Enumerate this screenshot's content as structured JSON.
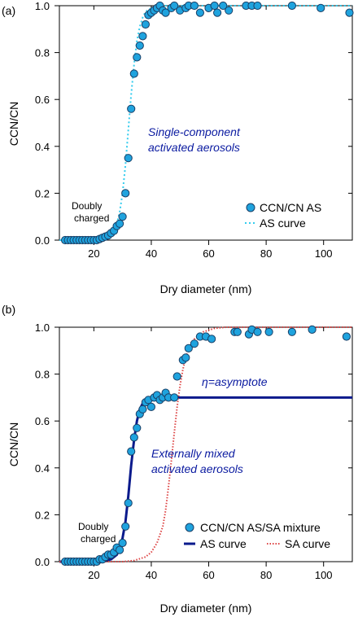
{
  "colors": {
    "marker_fill": "#1fa3de",
    "marker_stroke": "#1a3f66",
    "as_curve_a": "#33ccee",
    "as_curve_b": "#0a1a8c",
    "sa_curve": "#dd4444",
    "annotation": "#0a1aa0"
  },
  "chart_data": [
    {
      "panel_label": "(a)",
      "type": "scatter",
      "xlabel": "Dry diameter (nm)",
      "ylabel": "CCN/CN",
      "xlim": [
        8,
        110
      ],
      "ylim": [
        0,
        1.0
      ],
      "x_ticks": [
        20,
        40,
        60,
        80,
        100
      ],
      "y_ticks": [
        0.0,
        0.2,
        0.4,
        0.6,
        0.8,
        1.0
      ],
      "grid": false,
      "legend_placement": "bottom-right",
      "annotations": [
        "Single-component",
        "activated aerosols",
        "Doubly",
        "charged"
      ],
      "series": [
        {
          "name": "CCN/CN AS",
          "kind": "markers",
          "points": [
            [
              10,
              0
            ],
            [
              11,
              0
            ],
            [
              12,
              0
            ],
            [
              13,
              0
            ],
            [
              14,
              0
            ],
            [
              15,
              0
            ],
            [
              16,
              0
            ],
            [
              17,
              0
            ],
            [
              18,
              0
            ],
            [
              19,
              0
            ],
            [
              20,
              0
            ],
            [
              21,
              0
            ],
            [
              22,
              0.005
            ],
            [
              23,
              0.01
            ],
            [
              24,
              0.015
            ],
            [
              25,
              0.02
            ],
            [
              26,
              0.03
            ],
            [
              27,
              0.04
            ],
            [
              28,
              0.06
            ],
            [
              29,
              0.07
            ],
            [
              30,
              0.1
            ],
            [
              31,
              0.2
            ],
            [
              32,
              0.35
            ],
            [
              33,
              0.56
            ],
            [
              34,
              0.71
            ],
            [
              35,
              0.78
            ],
            [
              36,
              0.83
            ],
            [
              37,
              0.87
            ],
            [
              38,
              0.92
            ],
            [
              39,
              0.96
            ],
            [
              40,
              0.97
            ],
            [
              41,
              0.98
            ],
            [
              42,
              0.99
            ],
            [
              43,
              1.0
            ],
            [
              44,
              0.98
            ],
            [
              45,
              0.97
            ],
            [
              47,
              0.99
            ],
            [
              48,
              1.0
            ],
            [
              50,
              0.98
            ],
            [
              52,
              0.99
            ],
            [
              53,
              1.0
            ],
            [
              55,
              1.0
            ],
            [
              57,
              0.97
            ],
            [
              60,
              0.99
            ],
            [
              62,
              1.0
            ],
            [
              63,
              0.97
            ],
            [
              65,
              1.0
            ],
            [
              67,
              0.98
            ],
            [
              73,
              1.0
            ],
            [
              75,
              1.0
            ],
            [
              77,
              1.0
            ],
            [
              89,
              1.0
            ],
            [
              99,
              0.99
            ],
            [
              109,
              0.97
            ]
          ]
        },
        {
          "name": "AS curve",
          "kind": "dotted",
          "points": [
            [
              8,
              0
            ],
            [
              20,
              0
            ],
            [
              22,
              0.005
            ],
            [
              24,
              0.01
            ],
            [
              26,
              0.02
            ],
            [
              27,
              0.04
            ],
            [
              28,
              0.07
            ],
            [
              29,
              0.12
            ],
            [
              30,
              0.2
            ],
            [
              31,
              0.32
            ],
            [
              32,
              0.47
            ],
            [
              33,
              0.62
            ],
            [
              34,
              0.75
            ],
            [
              35,
              0.85
            ],
            [
              36,
              0.91
            ],
            [
              37,
              0.95
            ],
            [
              38,
              0.975
            ],
            [
              40,
              0.99
            ],
            [
              42,
              1.0
            ],
            [
              110,
              1.0
            ]
          ]
        }
      ]
    },
    {
      "panel_label": "(b)",
      "type": "scatter",
      "xlabel": "Dry diameter (nm)",
      "ylabel": "CCN/CN",
      "xlim": [
        8,
        110
      ],
      "ylim": [
        0,
        1.0
      ],
      "x_ticks": [
        20,
        40,
        60,
        80,
        100
      ],
      "y_ticks": [
        0.0,
        0.2,
        0.4,
        0.6,
        0.8,
        1.0
      ],
      "grid": false,
      "legend_placement": "bottom-right",
      "annotations": [
        "η=asymptote",
        "Externally mixed",
        "activated aerosols",
        "Doubly",
        "charged"
      ],
      "series": [
        {
          "name": "CCN/CN AS/SA mixture",
          "kind": "markers",
          "points": [
            [
              10,
              0
            ],
            [
              11,
              0
            ],
            [
              12,
              0
            ],
            [
              13,
              0
            ],
            [
              14,
              0
            ],
            [
              15,
              0
            ],
            [
              16,
              0
            ],
            [
              17,
              0
            ],
            [
              18,
              0
            ],
            [
              19,
              0
            ],
            [
              20,
              0
            ],
            [
              21,
              0
            ],
            [
              22,
              0.01
            ],
            [
              23,
              0.01
            ],
            [
              24,
              0.02
            ],
            [
              25,
              0.03
            ],
            [
              26,
              0.03
            ],
            [
              27,
              0.04
            ],
            [
              28,
              0.06
            ],
            [
              29,
              0.05
            ],
            [
              30,
              0.08
            ],
            [
              31,
              0.15
            ],
            [
              32,
              0.25
            ],
            [
              33,
              0.47
            ],
            [
              34,
              0.53
            ],
            [
              35,
              0.57
            ],
            [
              36,
              0.63
            ],
            [
              37,
              0.65
            ],
            [
              38,
              0.68
            ],
            [
              39,
              0.69
            ],
            [
              40,
              0.66
            ],
            [
              41,
              0.7
            ],
            [
              42,
              0.71
            ],
            [
              43,
              0.69
            ],
            [
              44,
              0.7
            ],
            [
              45,
              0.72
            ],
            [
              46,
              0.7
            ],
            [
              48,
              0.7
            ],
            [
              49,
              0.79
            ],
            [
              51,
              0.86
            ],
            [
              52,
              0.87
            ],
            [
              53,
              0.91
            ],
            [
              55,
              0.93
            ],
            [
              57,
              0.96
            ],
            [
              59,
              0.96
            ],
            [
              61,
              0.95
            ],
            [
              69,
              0.98
            ],
            [
              70,
              0.98
            ],
            [
              74,
              0.97
            ],
            [
              75,
              0.99
            ],
            [
              77,
              0.98
            ],
            [
              81,
              0.98
            ],
            [
              89,
              0.98
            ],
            [
              96,
              0.99
            ],
            [
              108,
              0.96
            ]
          ]
        },
        {
          "name": "AS curve",
          "kind": "solid",
          "points": [
            [
              8,
              0
            ],
            [
              22,
              0
            ],
            [
              24,
              0.005
            ],
            [
              26,
              0.01
            ],
            [
              28,
              0.03
            ],
            [
              29,
              0.06
            ],
            [
              30,
              0.1
            ],
            [
              31,
              0.17
            ],
            [
              32,
              0.28
            ],
            [
              33,
              0.41
            ],
            [
              34,
              0.52
            ],
            [
              35,
              0.6
            ],
            [
              36,
              0.65
            ],
            [
              37,
              0.675
            ],
            [
              38,
              0.69
            ],
            [
              39,
              0.7
            ],
            [
              110,
              0.7
            ]
          ]
        },
        {
          "name": "SA curve",
          "kind": "dotted",
          "points": [
            [
              8,
              0
            ],
            [
              30,
              0
            ],
            [
              34,
              0.005
            ],
            [
              38,
              0.02
            ],
            [
              40,
              0.04
            ],
            [
              42,
              0.08
            ],
            [
              44,
              0.15
            ],
            [
              45,
              0.22
            ],
            [
              46,
              0.32
            ],
            [
              47,
              0.43
            ],
            [
              48,
              0.55
            ],
            [
              49,
              0.66
            ],
            [
              50,
              0.75
            ],
            [
              51,
              0.82
            ],
            [
              52,
              0.87
            ],
            [
              53,
              0.91
            ],
            [
              55,
              0.95
            ],
            [
              58,
              0.98
            ],
            [
              62,
              0.995
            ],
            [
              66,
              1.0
            ],
            [
              110,
              1.0
            ]
          ]
        }
      ]
    }
  ]
}
